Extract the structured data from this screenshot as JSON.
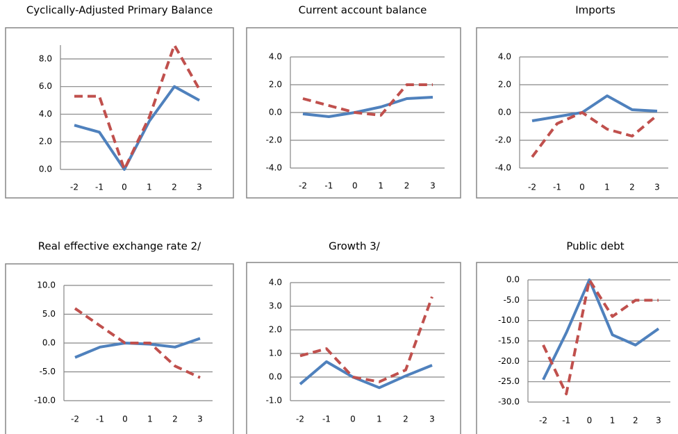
{
  "chart_data": [
    {
      "type": "line",
      "title": "Cyclically-Adjusted Primary Balance",
      "categories": [
        "-2",
        "-1",
        "0",
        "1",
        "2",
        "3"
      ],
      "series": [
        {
          "color": "#4f81bd",
          "values": [
            3.2,
            2.7,
            0,
            3.5,
            6.0,
            5.0
          ]
        },
        {
          "color": "#c0504d",
          "dashed": true,
          "values": [
            5.3,
            5.3,
            0,
            3.8,
            9.0,
            5.8
          ]
        }
      ],
      "ylim": [
        0,
        9
      ],
      "yticks": [
        {
          "value": 0,
          "label": "0.0"
        },
        {
          "value": 2,
          "label": "2.0"
        },
        {
          "value": 4,
          "label": "4.0"
        },
        {
          "value": 6,
          "label": "6.0"
        },
        {
          "value": 8,
          "label": "8.0"
        }
      ],
      "grid": true
    },
    {
      "type": "line",
      "title": "Current account balance",
      "categories": [
        "-2",
        "-1",
        "0",
        "1",
        "2",
        "3"
      ],
      "series": [
        {
          "color": "#4f81bd",
          "values": [
            -0.1,
            -0.3,
            0,
            0.4,
            1.0,
            1.1
          ]
        },
        {
          "color": "#c0504d",
          "dashed": true,
          "values": [
            1.0,
            0.5,
            0,
            -0.2,
            2.0,
            2.0
          ]
        }
      ],
      "ylim": [
        -4,
        4
      ],
      "yticks": [
        {
          "value": -4,
          "label": "-4.0"
        },
        {
          "value": -2,
          "label": "-2.0"
        },
        {
          "value": 0,
          "label": "0.0"
        },
        {
          "value": 2,
          "label": "2.0"
        },
        {
          "value": 4,
          "label": "4.0"
        }
      ],
      "grid": true
    },
    {
      "type": "line",
      "title": "Imports",
      "categories": [
        "-2",
        "-1",
        "0",
        "1",
        "2",
        "3"
      ],
      "series": [
        {
          "color": "#4f81bd",
          "values": [
            -0.6,
            -0.3,
            0,
            1.2,
            0.2,
            0.1
          ]
        },
        {
          "color": "#c0504d",
          "dashed": true,
          "values": [
            -3.2,
            -0.8,
            0,
            -1.2,
            -1.7,
            -0.2
          ]
        }
      ],
      "ylim": [
        -4,
        4
      ],
      "yticks": [
        {
          "value": -4,
          "label": "-4.0"
        },
        {
          "value": -2,
          "label": "-2.0"
        },
        {
          "value": 0,
          "label": "0.0"
        },
        {
          "value": 2,
          "label": "2.0"
        },
        {
          "value": 4,
          "label": "4.0"
        }
      ],
      "grid": true
    },
    {
      "type": "line",
      "title": "Real effective exchange rate 2/",
      "categories": [
        "-2",
        "-1",
        "0",
        "1",
        "2",
        "3"
      ],
      "series": [
        {
          "color": "#4f81bd",
          "values": [
            -2.5,
            -0.7,
            0,
            -0.2,
            -0.7,
            0.8
          ]
        },
        {
          "color": "#c0504d",
          "dashed": true,
          "values": [
            6.0,
            3.0,
            0,
            0,
            -4.0,
            -6.0
          ]
        }
      ],
      "ylim": [
        -10,
        10
      ],
      "yticks": [
        {
          "value": -10,
          "label": "-10.0"
        },
        {
          "value": -5,
          "label": "-5.0"
        },
        {
          "value": 0,
          "label": "0.0"
        },
        {
          "value": 5,
          "label": "5.0"
        },
        {
          "value": 10,
          "label": "10.0"
        }
      ],
      "grid": true
    },
    {
      "type": "line",
      "title": "Growth 3/",
      "categories": [
        "-2",
        "-1",
        "0",
        "1",
        "2",
        "3"
      ],
      "series": [
        {
          "color": "#4f81bd",
          "values": [
            -0.3,
            0.65,
            0,
            -0.45,
            0.05,
            0.5
          ]
        },
        {
          "color": "#c0504d",
          "dashed": true,
          "values": [
            0.9,
            1.2,
            0,
            -0.2,
            0.3,
            3.4
          ]
        }
      ],
      "ylim": [
        -1,
        4
      ],
      "yticks": [
        {
          "value": -1,
          "label": "-1.0"
        },
        {
          "value": 0,
          "label": "0.0"
        },
        {
          "value": 1,
          "label": "1.0"
        },
        {
          "value": 2,
          "label": "2.0"
        },
        {
          "value": 3,
          "label": "3.0"
        },
        {
          "value": 4,
          "label": "4.0"
        }
      ],
      "grid": true
    },
    {
      "type": "line",
      "title": "Public debt",
      "categories": [
        "-2",
        "-1",
        "0",
        "1",
        "2",
        "3"
      ],
      "series": [
        {
          "color": "#4f81bd",
          "values": [
            -24.5,
            -13,
            0,
            -13.5,
            -16,
            -12
          ]
        },
        {
          "color": "#c0504d",
          "dashed": true,
          "values": [
            -16,
            -28,
            0,
            -9,
            -5,
            -5
          ]
        }
      ],
      "ylim": [
        -30,
        0
      ],
      "yticks": [
        {
          "value": -30,
          "label": "-30.0"
        },
        {
          "value": -25,
          "label": "-25.0"
        },
        {
          "value": -20,
          "label": "-20.0"
        },
        {
          "value": -15,
          "label": "-15.0"
        },
        {
          "value": -10,
          "label": "-10.0"
        },
        {
          "value": -5,
          "label": "-5.0"
        },
        {
          "value": 0,
          "label": "0.0"
        }
      ],
      "grid": true
    }
  ]
}
